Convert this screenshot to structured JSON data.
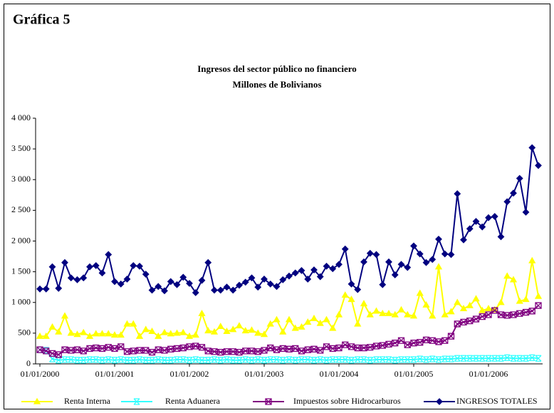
{
  "page_label": "Gráfica 5",
  "chart_data": {
    "type": "line",
    "title": "Ingresos del sector público no financiero",
    "subtitle": "Millones de Bolivianos",
    "categories": [
      "01/01/2000",
      null,
      null,
      null,
      null,
      null,
      null,
      null,
      null,
      null,
      null,
      null,
      "01/01/2001",
      null,
      null,
      null,
      null,
      null,
      null,
      null,
      null,
      null,
      null,
      null,
      "01/01/2002",
      null,
      null,
      null,
      null,
      null,
      null,
      null,
      null,
      null,
      null,
      null,
      "01/01/2003",
      null,
      null,
      null,
      null,
      null,
      null,
      null,
      null,
      null,
      null,
      null,
      "01/01/2004",
      null,
      null,
      null,
      null,
      null,
      null,
      null,
      null,
      null,
      null,
      null,
      "01/01/2005",
      null,
      null,
      null,
      null,
      null,
      null,
      null,
      null,
      null,
      null,
      null,
      "01/01/2006",
      null,
      null,
      null,
      null,
      null,
      null,
      null,
      null
    ],
    "ylim": [
      0,
      4000
    ],
    "yticks": [
      0,
      500,
      {
        "value": 1000,
        "label": "1 000"
      },
      {
        "value": 1500,
        "label": "1 500"
      },
      {
        "value": 2000,
        "label": "2 000"
      },
      {
        "value": 2500,
        "label": "2 500"
      },
      {
        "value": 3000,
        "label": "3 000"
      },
      {
        "value": 3500,
        "label": "3 500"
      },
      {
        "value": 4000,
        "label": "4 000"
      }
    ],
    "grid": false,
    "legend": "bottom",
    "series": [
      {
        "name": "Renta Interna",
        "color": "#ffff00",
        "marker": "triangle",
        "values": [
          450,
          450,
          600,
          520,
          780,
          500,
          480,
          510,
          450,
          490,
          490,
          490,
          470,
          470,
          650,
          650,
          450,
          560,
          530,
          450,
          510,
          490,
          500,
          510,
          450,
          470,
          820,
          540,
          520,
          610,
          530,
          560,
          620,
          540,
          550,
          500,
          480,
          650,
          720,
          520,
          720,
          580,
          600,
          680,
          740,
          660,
          720,
          580,
          800,
          1120,
          1050,
          650,
          980,
          800,
          860,
          820,
          820,
          800,
          880,
          800,
          780,
          1150,
          960,
          780,
          1580,
          800,
          850,
          1000,
          900,
          950,
          1060,
          870,
          900,
          880,
          1000,
          1430,
          1370,
          1020,
          1050,
          1680,
          1100
        ]
      },
      {
        "name": "Renta Aduanera",
        "color": "#33ffff",
        "marker": "x",
        "values": [
          230,
          220,
          80,
          60,
          70,
          70,
          60,
          60,
          70,
          70,
          60,
          70,
          60,
          70,
          60,
          60,
          70,
          60,
          60,
          70,
          60,
          60,
          70,
          70,
          60,
          70,
          60,
          60,
          70,
          60,
          70,
          60,
          60,
          70,
          60,
          70,
          60,
          70,
          70,
          60,
          70,
          60,
          70,
          70,
          60,
          70,
          60,
          70,
          70,
          70,
          60,
          70,
          70,
          60,
          70,
          70,
          70,
          60,
          70,
          70,
          70,
          80,
          70,
          80,
          70,
          80,
          80,
          90,
          90,
          90,
          90,
          90,
          90,
          90,
          90,
          100,
          90,
          90,
          90,
          100,
          90
        ]
      },
      {
        "name": "Impuestos sobre Hidrocarburos",
        "color": "#800080",
        "marker": "boxx",
        "values": [
          230,
          210,
          170,
          150,
          230,
          220,
          230,
          210,
          250,
          260,
          250,
          270,
          250,
          280,
          200,
          210,
          220,
          220,
          190,
          230,
          220,
          240,
          250,
          260,
          280,
          290,
          270,
          210,
          200,
          190,
          200,
          200,
          190,
          210,
          210,
          200,
          220,
          260,
          230,
          250,
          240,
          250,
          210,
          230,
          240,
          220,
          280,
          250,
          260,
          310,
          280,
          260,
          260,
          270,
          290,
          300,
          320,
          340,
          380,
          310,
          340,
          350,
          390,
          380,
          360,
          380,
          450,
          650,
          680,
          700,
          730,
          770,
          800,
          870,
          800,
          790,
          800,
          820,
          840,
          860,
          950
        ]
      },
      {
        "name": "INGRESOS TOTALES",
        "color": "#000080",
        "marker": "diamond",
        "values": [
          1220,
          1220,
          1580,
          1230,
          1650,
          1400,
          1370,
          1400,
          1580,
          1600,
          1480,
          1780,
          1340,
          1300,
          1380,
          1600,
          1590,
          1460,
          1200,
          1260,
          1190,
          1340,
          1290,
          1410,
          1310,
          1160,
          1360,
          1650,
          1200,
          1200,
          1250,
          1200,
          1280,
          1330,
          1400,
          1250,
          1380,
          1300,
          1260,
          1370,
          1430,
          1480,
          1520,
          1380,
          1530,
          1420,
          1590,
          1550,
          1620,
          1870,
          1300,
          1210,
          1660,
          1800,
          1780,
          1290,
          1660,
          1450,
          1620,
          1570,
          1920,
          1790,
          1650,
          1700,
          2030,
          1790,
          1780,
          2770,
          2020,
          2200,
          2320,
          2230,
          2380,
          2400,
          2070,
          2640,
          2780,
          3020,
          2470,
          3520,
          3230
        ]
      }
    ]
  }
}
